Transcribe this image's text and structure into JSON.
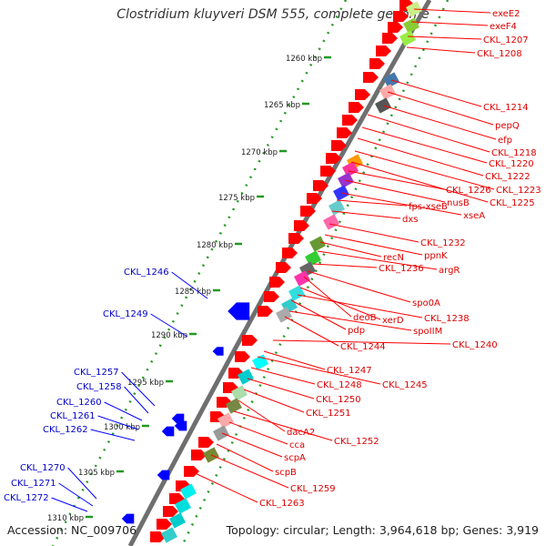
{
  "title": "Clostridium kluyveri DSM 555, complete genome",
  "footer": {
    "accession": "Accession: NC_009706",
    "summary": "Topology: circular; Length: 3,964,618 bp; Genes: 3,919"
  },
  "colors": {
    "forward_label": "#dd0000",
    "reverse_label": "#0000cc",
    "cds_forward": "#ff0000",
    "cds_reverse": "#0000ff",
    "backbone": "#888888",
    "tick": "#229922"
  },
  "ticks": [
    "1260 kbp",
    "1265 kbp",
    "1270 kbp",
    "1275 kbp",
    "1280 kbp",
    "1285 kbp",
    "1290 kbp",
    "1295 kbp",
    "1300 kbp",
    "1305 kbp",
    "1310 kbp"
  ],
  "forward_labels": [
    "exeE2",
    "exeF4",
    "CKL_1207",
    "CKL_1208",
    "CKL_1214",
    "pepQ",
    "efp",
    "CKL_1218",
    "CKL_1220",
    "CKL_1222",
    "CKL_1223",
    "CKL_1225",
    "CKL_1226",
    "nusB",
    "xseA",
    "fps-xseB",
    "dxs",
    "CKL_1232",
    "ppnK",
    "recN",
    "argR",
    "CKL_1236",
    "spo0A",
    "deoB",
    "xerD",
    "CKL_1238",
    "pdp",
    "spoIIM",
    "CKL_1244",
    "CKL_1240",
    "CKL_1247",
    "CKL_1245",
    "CKL_1248",
    "CKL_1250",
    "CKL_1251",
    "dacA2",
    "CKL_1252",
    "cca",
    "scpA",
    "scpB",
    "CKL_1259",
    "CKL_1263"
  ],
  "reverse_labels": [
    "CKL_1246",
    "CKL_1249",
    "CKL_1257",
    "CKL_1258",
    "CKL_1260",
    "CKL_1261",
    "CKL_1262",
    "CKL_1270",
    "CKL_1271",
    "CKL_1272"
  ]
}
